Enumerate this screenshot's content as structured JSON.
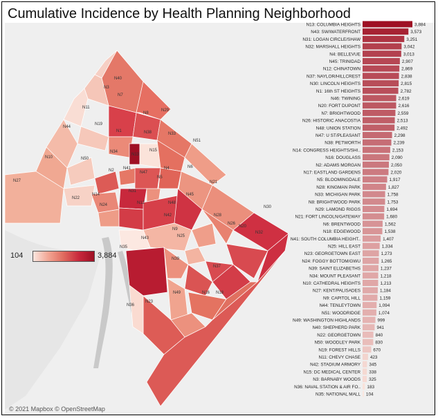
{
  "title": "Cumulative Incidence by Health Planning Neighborhood",
  "legend": {
    "min_label": "104",
    "max_label": "3,884"
  },
  "map_credit": "© 2021 Mapbox © OpenStreetMap",
  "colors": {
    "low": "#fbe6df",
    "high": "#9e1024",
    "map_bg": "#efefef",
    "river": "#c9c9c9"
  },
  "map_labels": [
    "N40",
    "N3",
    "N7",
    "N11",
    "N8",
    "N29",
    "N19",
    "N44",
    "N1",
    "N38",
    "N33",
    "N51",
    "N10",
    "N50",
    "N34",
    "N13",
    "N15",
    "N27",
    "N2",
    "N41",
    "N47",
    "N4",
    "N6",
    "N21",
    "N22",
    "N14",
    "N31",
    "N5",
    "N9",
    "N24",
    "N12",
    "N48",
    "N45",
    "N26",
    "N30",
    "N25",
    "N28",
    "N20",
    "N42",
    "N32",
    "N35",
    "N16",
    "N39",
    "N37",
    "N23",
    "N18",
    "N36",
    "N49",
    "N43"
  ],
  "chart_data": {
    "type": "bar",
    "orientation": "horizontal",
    "categories": [
      "N13: COLUMBIA HEIGHTS",
      "N43: SW/WATERFRONT",
      "N31: LOGAN CIRCLE/SHAW",
      "N32: MARSHALL HEIGHTS",
      "N4: BELLEVUE",
      "N45: TRINIDAD",
      "N12: CHINATOWN",
      "N37: NAYLOR/HILLCREST",
      "N30: LINCOLN HEIGHTS",
      "N1: 16th ST HEIGHTS",
      "N46: TWINING",
      "N20: FORT DUPONT",
      "N7: BRIGHTWOOD",
      "N26: HISTORIC ANACOSTIA",
      "N48: UNION STATION",
      "N47: U ST/PLEASANT",
      "N38: PETWORTH",
      "N14: CONGRESS HEIGHTS/SHI..",
      "N16: DOUGLASS",
      "N2: ADAMS MORGAN",
      "N17: EASTLAND GARDENS",
      "N5: BLOOMINGDALE",
      "N28: KINGMAN PARK",
      "N33: MICHIGAN PARK",
      "N8: BRIGHTWOOD PARK",
      "N29: LAMOND RIGGS",
      "N21: FORT LINCOLN/GATEWAY",
      "N6: BRENTWOOD",
      "N18: EDGEWOOD",
      "N41: SOUTH COLUMBIA HEIGHT..",
      "N25: HILL EAST",
      "N23: GEORGETOWN EAST",
      "N24: FOGGY BOTTOM/GWU",
      "N39: SAINT ELIZABETHS",
      "N34: MOUNT PLEASANT",
      "N10: CATHEDRAL HEIGHTS",
      "N27: KENT/PALISADES",
      "N9: CAPITOL HILL",
      "N44: TENLEYTOWN",
      "N51: WOODRIDGE",
      "N49: WASHINGTON HIGHLANDS",
      "N40: SHEPHERD PARK",
      "N22: GEORGETOWN",
      "N50: WOODLEY PARK",
      "N19: FOREST HILLS",
      "N11: CHEVY CHASE",
      "N42: STADIUM ARMORY",
      "N15: DC MEDICAL CENTER",
      "N3: BARNABY WOODS",
      "N36: NAVAL STATION & AIR FO..",
      "N35: NATIONAL MALL"
    ],
    "values": [
      3884,
      3573,
      3251,
      3042,
      3013,
      2907,
      2869,
      2838,
      2815,
      2782,
      2619,
      2616,
      2559,
      2513,
      2492,
      2298,
      2239,
      2153,
      2090,
      2050,
      2020,
      1917,
      1827,
      1758,
      1753,
      1694,
      1680,
      1562,
      1538,
      1407,
      1334,
      1273,
      1265,
      1237,
      1218,
      1213,
      1184,
      1159,
      1094,
      1074,
      999,
      941,
      840,
      830,
      670,
      423,
      345,
      338,
      325,
      183,
      104
    ],
    "value_labels": [
      "3,884",
      "3,573",
      "3,251",
      "3,042",
      "3,013",
      "2,907",
      "2,869",
      "2,838",
      "2,815",
      "2,782",
      "2,619",
      "2,616",
      "2,559",
      "2,513",
      "2,492",
      "2,298",
      "2,239",
      "2,153",
      "2,090",
      "2,050",
      "2,020",
      "1,917",
      "1,827",
      "1,758",
      "1,753",
      "1,694",
      "1,680",
      "1,562",
      "1,538",
      "1,407",
      "1,334",
      "1,273",
      "1,265",
      "1,237",
      "1,218",
      "1,213",
      "1,184",
      "1,159",
      "1,094",
      "1,074",
      "999",
      "941",
      "840",
      "830",
      "670",
      "423",
      "345",
      "338",
      "325",
      "183",
      "104"
    ],
    "xlim": [
      0,
      3884
    ],
    "grid": false
  }
}
